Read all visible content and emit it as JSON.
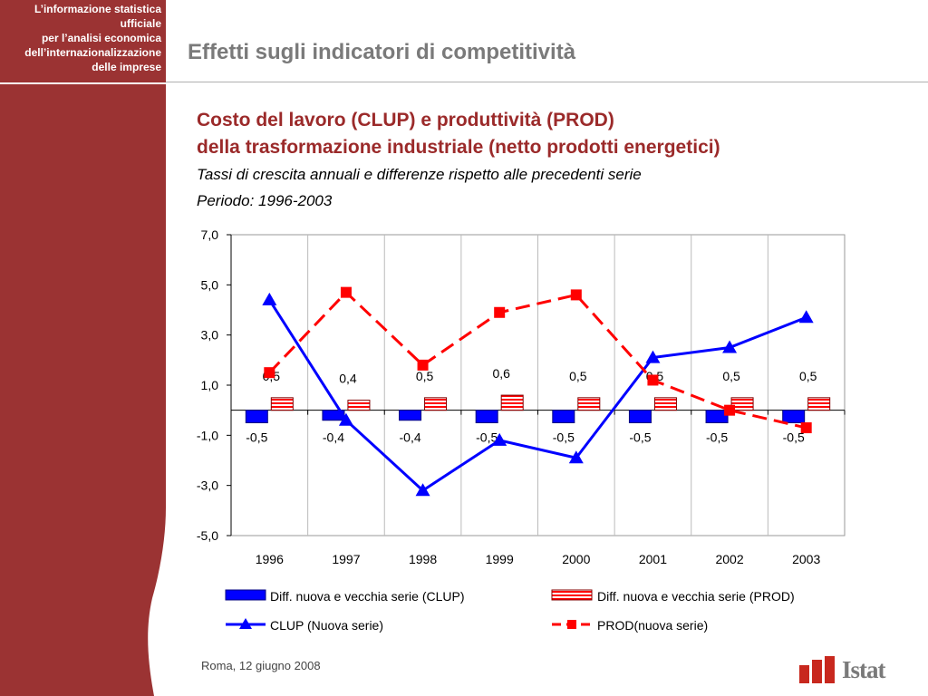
{
  "sidebar": {
    "lines": [
      "L’informazione statistica",
      "ufficiale",
      "per l’analisi economica",
      "dell’internazionalizzazione",
      "delle imprese"
    ],
    "color": "#9b3333"
  },
  "header": {
    "title": "Effetti sugli indicatori di competitività"
  },
  "chart_title": {
    "line1": "Costo del lavoro (CLUP) e produttività (PROD)",
    "line2": "della trasformazione industriale (netto prodotti energetici)",
    "subtitle": "Tassi di crescita annuali e differenze rispetto alle precedenti serie",
    "period": "Periodo: 1996-2003"
  },
  "chart_data": {
    "type": "bar+line",
    "categories": [
      "1996",
      "1997",
      "1998",
      "1999",
      "2000",
      "2001",
      "2002",
      "2003"
    ],
    "ylim": [
      -5,
      7
    ],
    "yticks": [
      "7,0",
      "5,0",
      "3,0",
      "1,0",
      "-1,0",
      "-3,0",
      "-5,0"
    ],
    "ytick_values": [
      7,
      5,
      3,
      1,
      -1,
      -3,
      -5
    ],
    "grid": "vertical",
    "legend_placement": "bottom",
    "series": [
      {
        "name": "Diff. nuova e vecchia serie (CLUP)",
        "kind": "bar",
        "color": "#0000ff",
        "values": [
          -0.5,
          -0.4,
          -0.4,
          -0.5,
          -0.5,
          -0.5,
          -0.5,
          -0.5
        ],
        "labels": [
          "-0,5",
          "-0,4",
          "-0,4",
          "-0,5",
          "-0,5",
          "-0,5",
          "-0,5",
          "-0,5"
        ]
      },
      {
        "name": "Diff. nuova e vecchia serie (PROD)",
        "kind": "bar",
        "color": "#ff0000",
        "values": [
          0.5,
          0.4,
          0.5,
          0.6,
          0.5,
          0.5,
          0.5,
          0.5
        ],
        "labels": [
          "0,5",
          "0,4",
          "0,5",
          "0,6",
          "0,5",
          "0,5",
          "0,5",
          "0,5"
        ]
      },
      {
        "name": "CLUP (Nuova serie)",
        "kind": "line",
        "marker": "triangle",
        "color": "#0000ff",
        "values": [
          4.4,
          -0.4,
          -3.2,
          -1.2,
          -1.9,
          2.1,
          2.5,
          3.7
        ]
      },
      {
        "name": "PROD(nuova serie)",
        "kind": "line",
        "marker": "square",
        "dashed": true,
        "color": "#ff0000",
        "values": [
          1.5,
          4.7,
          1.8,
          3.9,
          4.6,
          1.2,
          0.0,
          -0.7
        ]
      }
    ]
  },
  "footer": {
    "date": "Roma, 12 giugno 2008"
  },
  "logo": {
    "text": "Istat",
    "color": "#c8281e"
  }
}
